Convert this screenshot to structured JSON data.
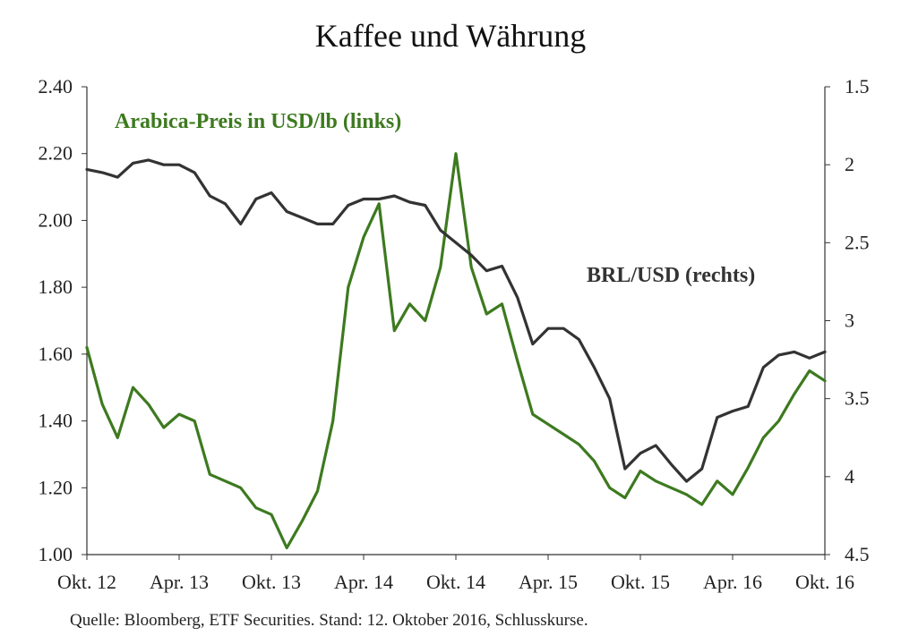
{
  "chart_data": {
    "type": "line",
    "title": "Kaffee und Währung",
    "source": "Quelle: Bloomberg, ETF Securities. Stand: 12. Oktober 2016, Schlusskurse.",
    "x_ticks": [
      "Okt. 12",
      "Apr. 13",
      "Okt. 13",
      "Apr. 14",
      "Okt. 14",
      "Apr. 15",
      "Okt. 15",
      "Apr. 16",
      "Okt. 16"
    ],
    "left_axis": {
      "ylim": [
        1.0,
        2.4
      ],
      "ticks": [
        "1.00",
        "1.20",
        "1.40",
        "1.60",
        "1.80",
        "2.00",
        "2.20",
        "2.40"
      ]
    },
    "right_axis": {
      "ylim": [
        1.5,
        4.5
      ],
      "inverted": true,
      "ticks": [
        "1.5",
        "2",
        "2.5",
        "3",
        "3.5",
        "4",
        "4.5"
      ]
    },
    "series": [
      {
        "name": "Arabica-Preis in USD/lb (links)",
        "axis": "left",
        "color": "#3d7a1f",
        "x": [
          "2012-10",
          "2012-11",
          "2012-12",
          "2013-01",
          "2013-02",
          "2013-03",
          "2013-04",
          "2013-05",
          "2013-06",
          "2013-07",
          "2013-08",
          "2013-09",
          "2013-10",
          "2013-11",
          "2013-12",
          "2014-01",
          "2014-02",
          "2014-03",
          "2014-04",
          "2014-05",
          "2014-06",
          "2014-07",
          "2014-08",
          "2014-09",
          "2014-10",
          "2014-11",
          "2014-12",
          "2015-01",
          "2015-02",
          "2015-03",
          "2015-04",
          "2015-05",
          "2015-06",
          "2015-07",
          "2015-08",
          "2015-09",
          "2015-10",
          "2015-11",
          "2015-12",
          "2016-01",
          "2016-02",
          "2016-03",
          "2016-04",
          "2016-05",
          "2016-06",
          "2016-07",
          "2016-08",
          "2016-09",
          "2016-10"
        ],
        "values": [
          1.62,
          1.45,
          1.35,
          1.5,
          1.45,
          1.38,
          1.42,
          1.4,
          1.24,
          1.22,
          1.2,
          1.14,
          1.12,
          1.02,
          1.1,
          1.19,
          1.4,
          1.8,
          1.95,
          2.05,
          1.67,
          1.75,
          1.7,
          1.86,
          2.2,
          1.86,
          1.72,
          1.75,
          1.58,
          1.42,
          1.39,
          1.36,
          1.33,
          1.28,
          1.2,
          1.17,
          1.25,
          1.22,
          1.2,
          1.18,
          1.15,
          1.22,
          1.18,
          1.26,
          1.35,
          1.4,
          1.48,
          1.55,
          1.52
        ]
      },
      {
        "name": "BRL/USD (rechts)",
        "axis": "right",
        "color": "#333333",
        "x": [
          "2012-10",
          "2012-11",
          "2012-12",
          "2013-01",
          "2013-02",
          "2013-03",
          "2013-04",
          "2013-05",
          "2013-06",
          "2013-07",
          "2013-08",
          "2013-09",
          "2013-10",
          "2013-11",
          "2013-12",
          "2014-01",
          "2014-02",
          "2014-03",
          "2014-04",
          "2014-05",
          "2014-06",
          "2014-07",
          "2014-08",
          "2014-09",
          "2014-10",
          "2014-11",
          "2014-12",
          "2015-01",
          "2015-02",
          "2015-03",
          "2015-04",
          "2015-05",
          "2015-06",
          "2015-07",
          "2015-08",
          "2015-09",
          "2015-10",
          "2015-11",
          "2015-12",
          "2016-01",
          "2016-02",
          "2016-03",
          "2016-04",
          "2016-05",
          "2016-06",
          "2016-07",
          "2016-08",
          "2016-09",
          "2016-10"
        ],
        "values": [
          2.03,
          2.05,
          2.08,
          1.99,
          1.97,
          2.0,
          2.0,
          2.05,
          2.2,
          2.25,
          2.38,
          2.22,
          2.18,
          2.3,
          2.34,
          2.38,
          2.38,
          2.26,
          2.22,
          2.22,
          2.2,
          2.24,
          2.26,
          2.42,
          2.5,
          2.58,
          2.68,
          2.65,
          2.85,
          3.15,
          3.05,
          3.05,
          3.12,
          3.3,
          3.5,
          3.95,
          3.85,
          3.8,
          3.92,
          4.03,
          3.95,
          3.62,
          3.58,
          3.55,
          3.3,
          3.22,
          3.2,
          3.24,
          3.2
        ]
      }
    ]
  }
}
